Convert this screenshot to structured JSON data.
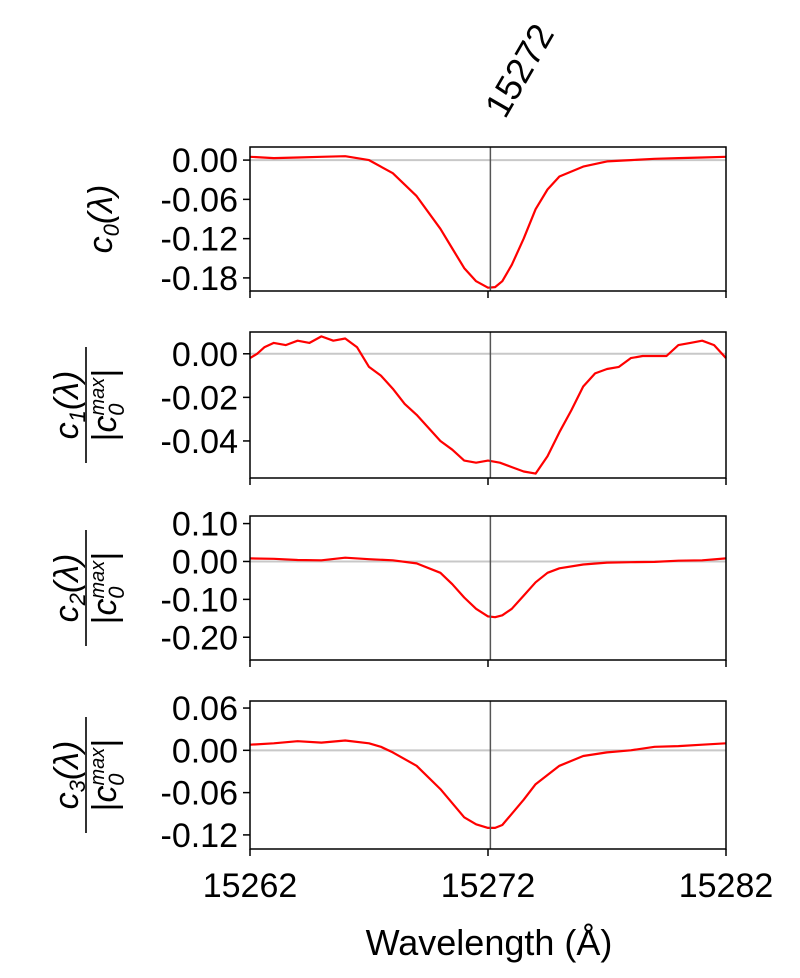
{
  "top_annotation": "15272",
  "xlabel": "Wavelength (Å)",
  "colors": {
    "series": "#ff0000",
    "zero_line": "#c8c8c8",
    "marker_line": "#555555",
    "axes": "#000000"
  },
  "chart_data": [
    {
      "type": "line",
      "ylabel": {
        "sym": "c",
        "sub": "0",
        "arg": "(λ)"
      },
      "xlim": [
        15262,
        15282
      ],
      "ylim": [
        -0.2,
        0.02
      ],
      "yticks": [
        0.0,
        -0.06,
        -0.12,
        -0.18
      ],
      "ytick_labels": [
        "0.00",
        "-0.06",
        "-0.12",
        "-0.18"
      ],
      "hline": 0.0,
      "vline": 15272.1,
      "grid": false,
      "series": [
        {
          "x": [
            15262,
            15263,
            15264,
            15265,
            15266,
            15267,
            15268,
            15269,
            15270,
            15270.5,
            15271,
            15271.5,
            15272,
            15272.3,
            15272.6,
            15273,
            15273.5,
            15274,
            15274.5,
            15275,
            15276,
            15277,
            15278,
            15279,
            15280,
            15281,
            15282
          ],
          "y": [
            0.005,
            0.003,
            0.004,
            0.005,
            0.006,
            0.0,
            -0.02,
            -0.055,
            -0.105,
            -0.135,
            -0.165,
            -0.185,
            -0.195,
            -0.194,
            -0.185,
            -0.16,
            -0.12,
            -0.075,
            -0.045,
            -0.025,
            -0.01,
            -0.002,
            0.0,
            0.002,
            0.003,
            0.004,
            0.005
          ]
        }
      ]
    },
    {
      "type": "line",
      "ylabel": {
        "sym": "c",
        "sub": "1",
        "arg": "(λ)",
        "norm_sym": "c",
        "norm_sub": "0",
        "norm_sup": "max"
      },
      "xlim": [
        15262,
        15282
      ],
      "ylim": [
        -0.057,
        0.01
      ],
      "yticks": [
        0.0,
        -0.02,
        -0.04
      ],
      "ytick_labels": [
        "0.00",
        "-0.02",
        "-0.04"
      ],
      "hline": 0.0,
      "vline": 15272.1,
      "grid": false,
      "series": [
        {
          "x": [
            15262,
            15262.3,
            15262.6,
            15263,
            15263.5,
            15264,
            15264.5,
            15265,
            15265.5,
            15266,
            15266.5,
            15267,
            15267.5,
            15268,
            15268.5,
            15269,
            15269.5,
            15270,
            15270.5,
            15271,
            15271.5,
            15272,
            15272.5,
            15273,
            15273.5,
            15274,
            15274.5,
            15275,
            15275.5,
            15276,
            15276.5,
            15277,
            15277.5,
            15278,
            15278.5,
            15279,
            15279.5,
            15280,
            15280.5,
            15281,
            15281.5,
            15282
          ],
          "y": [
            -0.002,
            0.0,
            0.003,
            0.005,
            0.004,
            0.006,
            0.005,
            0.008,
            0.006,
            0.007,
            0.003,
            -0.006,
            -0.01,
            -0.016,
            -0.023,
            -0.028,
            -0.034,
            -0.04,
            -0.044,
            -0.049,
            -0.05,
            -0.049,
            -0.05,
            -0.052,
            -0.054,
            -0.055,
            -0.047,
            -0.036,
            -0.026,
            -0.015,
            -0.009,
            -0.007,
            -0.006,
            -0.002,
            -0.001,
            -0.001,
            -0.001,
            0.004,
            0.005,
            0.006,
            0.004,
            -0.002
          ]
        }
      ]
    },
    {
      "type": "line",
      "ylabel": {
        "sym": "c",
        "sub": "2",
        "arg": "(λ)",
        "norm_sym": "c",
        "norm_sub": "0",
        "norm_sup": "max"
      },
      "xlim": [
        15262,
        15282
      ],
      "ylim": [
        -0.26,
        0.12
      ],
      "yticks": [
        0.1,
        0.0,
        -0.1,
        -0.2
      ],
      "ytick_labels": [
        "0.10",
        "0.00",
        "-0.10",
        "-0.20"
      ],
      "hline": 0.0,
      "vline": 15272.1,
      "grid": false,
      "series": [
        {
          "x": [
            15262,
            15263,
            15264,
            15265,
            15266,
            15267,
            15268,
            15269,
            15270,
            15270.5,
            15271,
            15271.5,
            15272,
            15272.3,
            15272.6,
            15273,
            15273.5,
            15274,
            15274.5,
            15275,
            15276,
            15277,
            15278,
            15279,
            15280,
            15281,
            15282
          ],
          "y": [
            0.008,
            0.007,
            0.004,
            0.003,
            0.01,
            0.006,
            0.003,
            -0.005,
            -0.03,
            -0.06,
            -0.095,
            -0.125,
            -0.145,
            -0.147,
            -0.142,
            -0.125,
            -0.09,
            -0.055,
            -0.03,
            -0.018,
            -0.008,
            -0.003,
            -0.002,
            -0.001,
            0.002,
            0.003,
            0.008
          ]
        }
      ]
    },
    {
      "type": "line",
      "ylabel": {
        "sym": "c",
        "sub": "3",
        "arg": "(λ)",
        "norm_sym": "c",
        "norm_sub": "0",
        "norm_sup": "max"
      },
      "xlim": [
        15262,
        15282
      ],
      "ylim": [
        -0.14,
        0.07
      ],
      "yticks": [
        0.06,
        0.0,
        -0.06,
        -0.12
      ],
      "ytick_labels": [
        "0.06",
        "0.00",
        "-0.06",
        "-0.12"
      ],
      "hline": 0.0,
      "vline": 15272.1,
      "grid": false,
      "series": [
        {
          "x": [
            15262,
            15263,
            15264,
            15265,
            15266,
            15267,
            15267.5,
            15268,
            15269,
            15270,
            15270.5,
            15271,
            15271.5,
            15272,
            15272.3,
            15272.6,
            15273,
            15273.5,
            15274,
            15274.5,
            15275,
            15276,
            15277,
            15278,
            15279,
            15280,
            15281,
            15282
          ],
          "y": [
            0.008,
            0.01,
            0.013,
            0.011,
            0.014,
            0.01,
            0.005,
            -0.003,
            -0.022,
            -0.055,
            -0.075,
            -0.095,
            -0.105,
            -0.11,
            -0.11,
            -0.106,
            -0.09,
            -0.07,
            -0.048,
            -0.035,
            -0.022,
            -0.008,
            -0.003,
            0.0,
            0.005,
            0.006,
            0.008,
            0.01
          ]
        }
      ]
    }
  ],
  "xticks": [
    15262,
    15272,
    15282
  ],
  "xtick_labels": [
    "15262",
    "15272",
    "15282"
  ]
}
